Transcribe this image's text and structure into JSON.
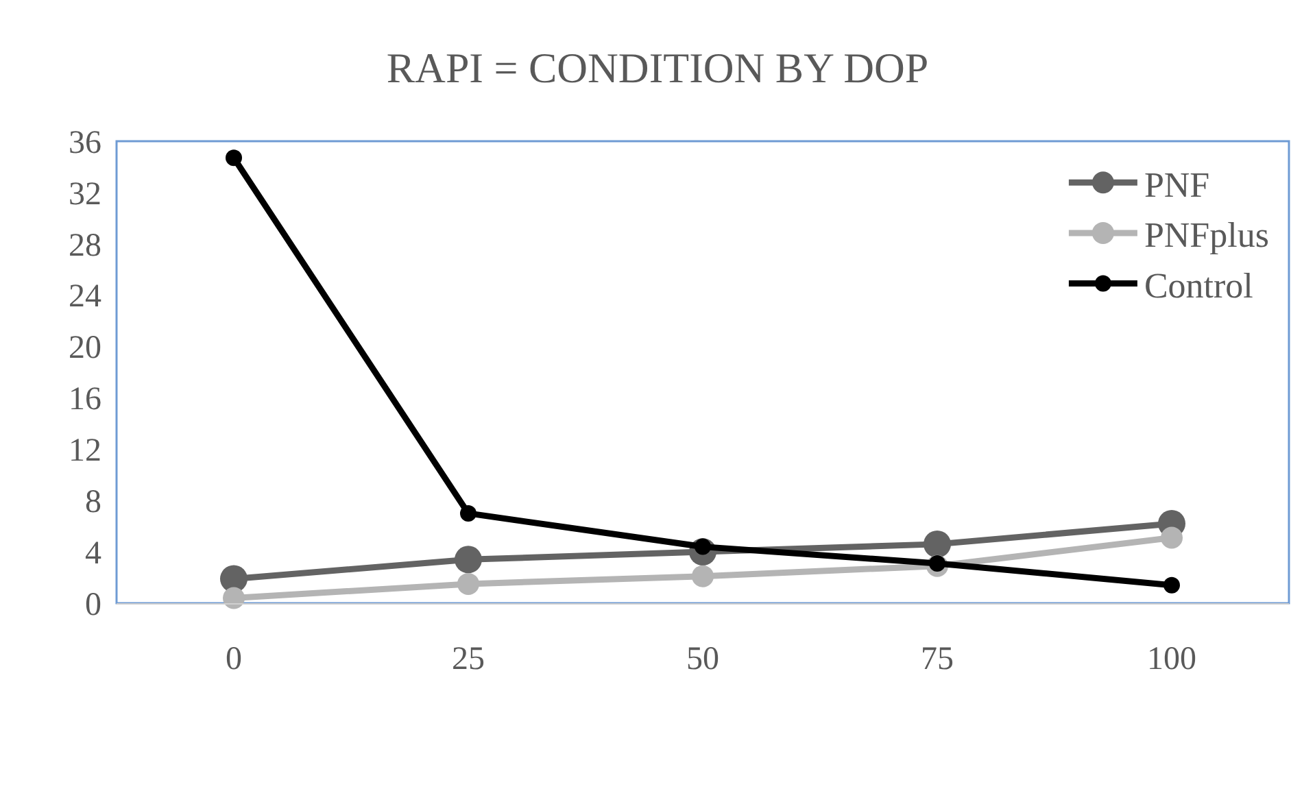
{
  "chart_data": {
    "type": "line",
    "title": "RAPI = CONDITION BY DOP",
    "categories": [
      "0",
      "25",
      "50",
      "75",
      "100"
    ],
    "series": [
      {
        "name": "PNF",
        "color": "#636363",
        "values": [
          1.9,
          3.4,
          4.0,
          4.6,
          6.2
        ]
      },
      {
        "name": "PNFplus",
        "color": "#b4b4b4",
        "values": [
          0.4,
          1.5,
          2.1,
          2.9,
          5.1
        ]
      },
      {
        "name": "Control",
        "color": "#000000",
        "values": [
          34.7,
          7.0,
          4.4,
          3.1,
          1.4
        ]
      }
    ],
    "ylim": [
      0,
      36
    ],
    "yticks": [
      0,
      4,
      8,
      12,
      16,
      20,
      24,
      28,
      32,
      36
    ],
    "grid": false,
    "legend": "top right",
    "marker": "circle",
    "line_style": "solid"
  }
}
